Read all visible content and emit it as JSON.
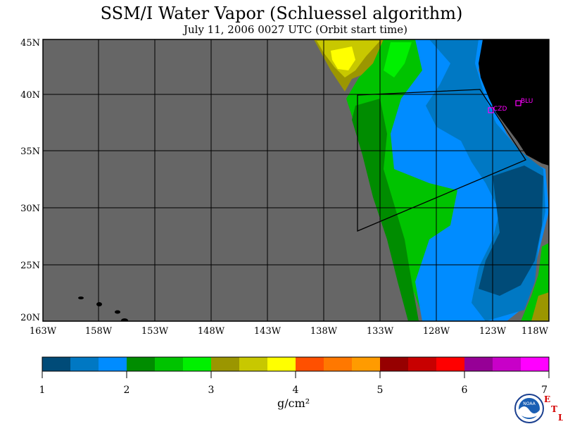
{
  "title": "SSM/I Water Vapor (Schluessel algorithm)",
  "subtitle": "July 11, 2006  0027 UTC  (Orbit start time)",
  "map": {
    "lat_labels": [
      "45N",
      "40N",
      "35N",
      "30N",
      "25N",
      "20N"
    ],
    "lon_labels": [
      "163W",
      "158W",
      "153W",
      "148W",
      "143W",
      "138W",
      "133W",
      "128W",
      "123W",
      "118W"
    ],
    "lat_range": [
      20,
      45
    ],
    "lon_range": [
      -163,
      -118
    ],
    "stations": [
      {
        "code": "CZD",
        "lat": 38.6,
        "lon": -123.2,
        "color": "#ff00ff"
      },
      {
        "code": "BLU",
        "lat": 39.2,
        "lon": -120.9,
        "color": "#ff00ff"
      }
    ],
    "outline_box": {
      "corners_latlon": [
        [
          39.9,
          -134.8
        ],
        [
          40.5,
          -120.8
        ],
        [
          34.3,
          -120.5
        ],
        [
          27.9,
          -134.8
        ]
      ]
    },
    "colors": {
      "no_data": "#666666",
      "land": "#000000"
    }
  },
  "colorbar": {
    "colors": [
      "#004b78",
      "#0078c3",
      "#008cff",
      "#008c00",
      "#00c300",
      "#00f000",
      "#9b9600",
      "#c8c800",
      "#ffff00",
      "#ff5000",
      "#ff7800",
      "#ff9b00",
      "#960000",
      "#c80000",
      "#ff0000",
      "#960096",
      "#c800c8",
      "#ff00ff"
    ],
    "labels": [
      "1",
      "2",
      "3",
      "4",
      "5",
      "6",
      "7"
    ],
    "units": "g/cm²"
  },
  "logo": {
    "text": "NOAA",
    "etl": [
      "E",
      "T",
      "L"
    ]
  }
}
